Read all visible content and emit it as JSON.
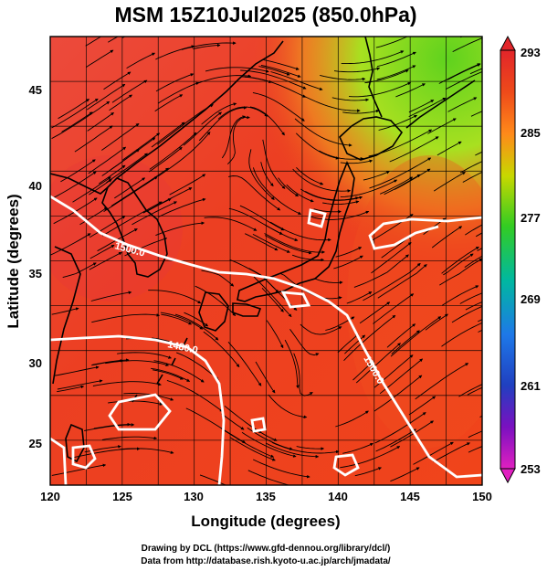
{
  "title": "MSM 15Z10Jul2025 (850.0hPa)",
  "xlabel": "Longitude (degrees)",
  "ylabel": "Latitude  (degrees)",
  "x_ticks": [
    "120",
    "125",
    "130",
    "135",
    "140",
    "145",
    "150"
  ],
  "y_ticks": [
    "25",
    "30",
    "35",
    "40",
    "45"
  ],
  "colorbar_ticks": [
    "293",
    "285",
    "277",
    "269",
    "261",
    "253"
  ],
  "contour_labels": [
    "1500.0",
    "1480.0",
    "1500.0"
  ],
  "credits": [
    "Drawing by DCL (https://www.gfd-dennou.org/library/dcl/)",
    "Data from http://database.rish.kyoto-u.ac.jp/arch/jmadata/"
  ],
  "colors": {
    "warm": "#ee3a1c",
    "hot": "#e8262a",
    "cool_green": "#66dd22",
    "coastline": "#000000",
    "contour": "#ffffff"
  },
  "chart_data": {
    "type": "map",
    "field": "temperature (K) shaded, geopotential height contours (m), wind streamlines",
    "xlim": [
      120,
      150
    ],
    "ylim": [
      22.5,
      47.5
    ],
    "colorbar_range": [
      253,
      293
    ],
    "colorbar_labels": [
      293,
      285,
      277,
      269,
      261,
      253
    ],
    "contour_labels": [
      "1500.0",
      "1480.0",
      "1500.0"
    ]
  }
}
